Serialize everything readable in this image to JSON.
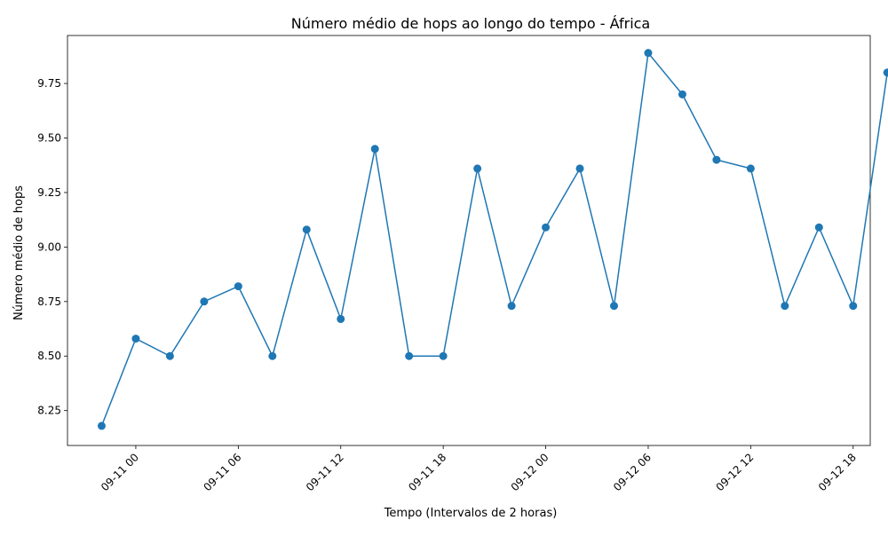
{
  "chart_data": {
    "type": "line",
    "title": "Número médio de hops ao longo do tempo - África",
    "xlabel": "Tempo (Intervalos de 2 horas)",
    "ylabel": "Número médio de hops",
    "x_tick_labels": [
      "09-11 00",
      "09-11 06",
      "09-11 12",
      "09-11 18",
      "09-12 00",
      "09-12 06",
      "09-12 12",
      "09-12 18"
    ],
    "y_tick_labels": [
      "8.25",
      "8.50",
      "8.75",
      "9.00",
      "9.25",
      "9.50",
      "9.75"
    ],
    "y_ticks": [
      8.25,
      8.5,
      8.75,
      9.0,
      9.25,
      9.5,
      9.75
    ],
    "ylim": [
      8.09,
      9.97
    ],
    "xlim_hours": [
      -4.0,
      43.0
    ],
    "x_tick_hours": [
      0,
      6,
      12,
      18,
      24,
      30,
      36,
      42
    ],
    "grid": false,
    "marker": "circle",
    "color": "#1f77b4",
    "series": [
      {
        "x_hours": [
          -2,
          0,
          2,
          4,
          6,
          8,
          10,
          12,
          14,
          16,
          18,
          20,
          22,
          24,
          26,
          28,
          30,
          32,
          34,
          36,
          38,
          40,
          42,
          44
        ],
        "values": [
          8.18,
          8.58,
          8.5,
          8.75,
          8.82,
          8.5,
          9.08,
          8.67,
          9.45,
          8.5,
          8.5,
          9.36,
          8.73,
          9.09,
          9.36,
          8.73,
          9.89,
          9.7,
          9.4,
          9.36,
          8.73,
          9.09,
          8.73,
          9.8
        ]
      }
    ]
  }
}
